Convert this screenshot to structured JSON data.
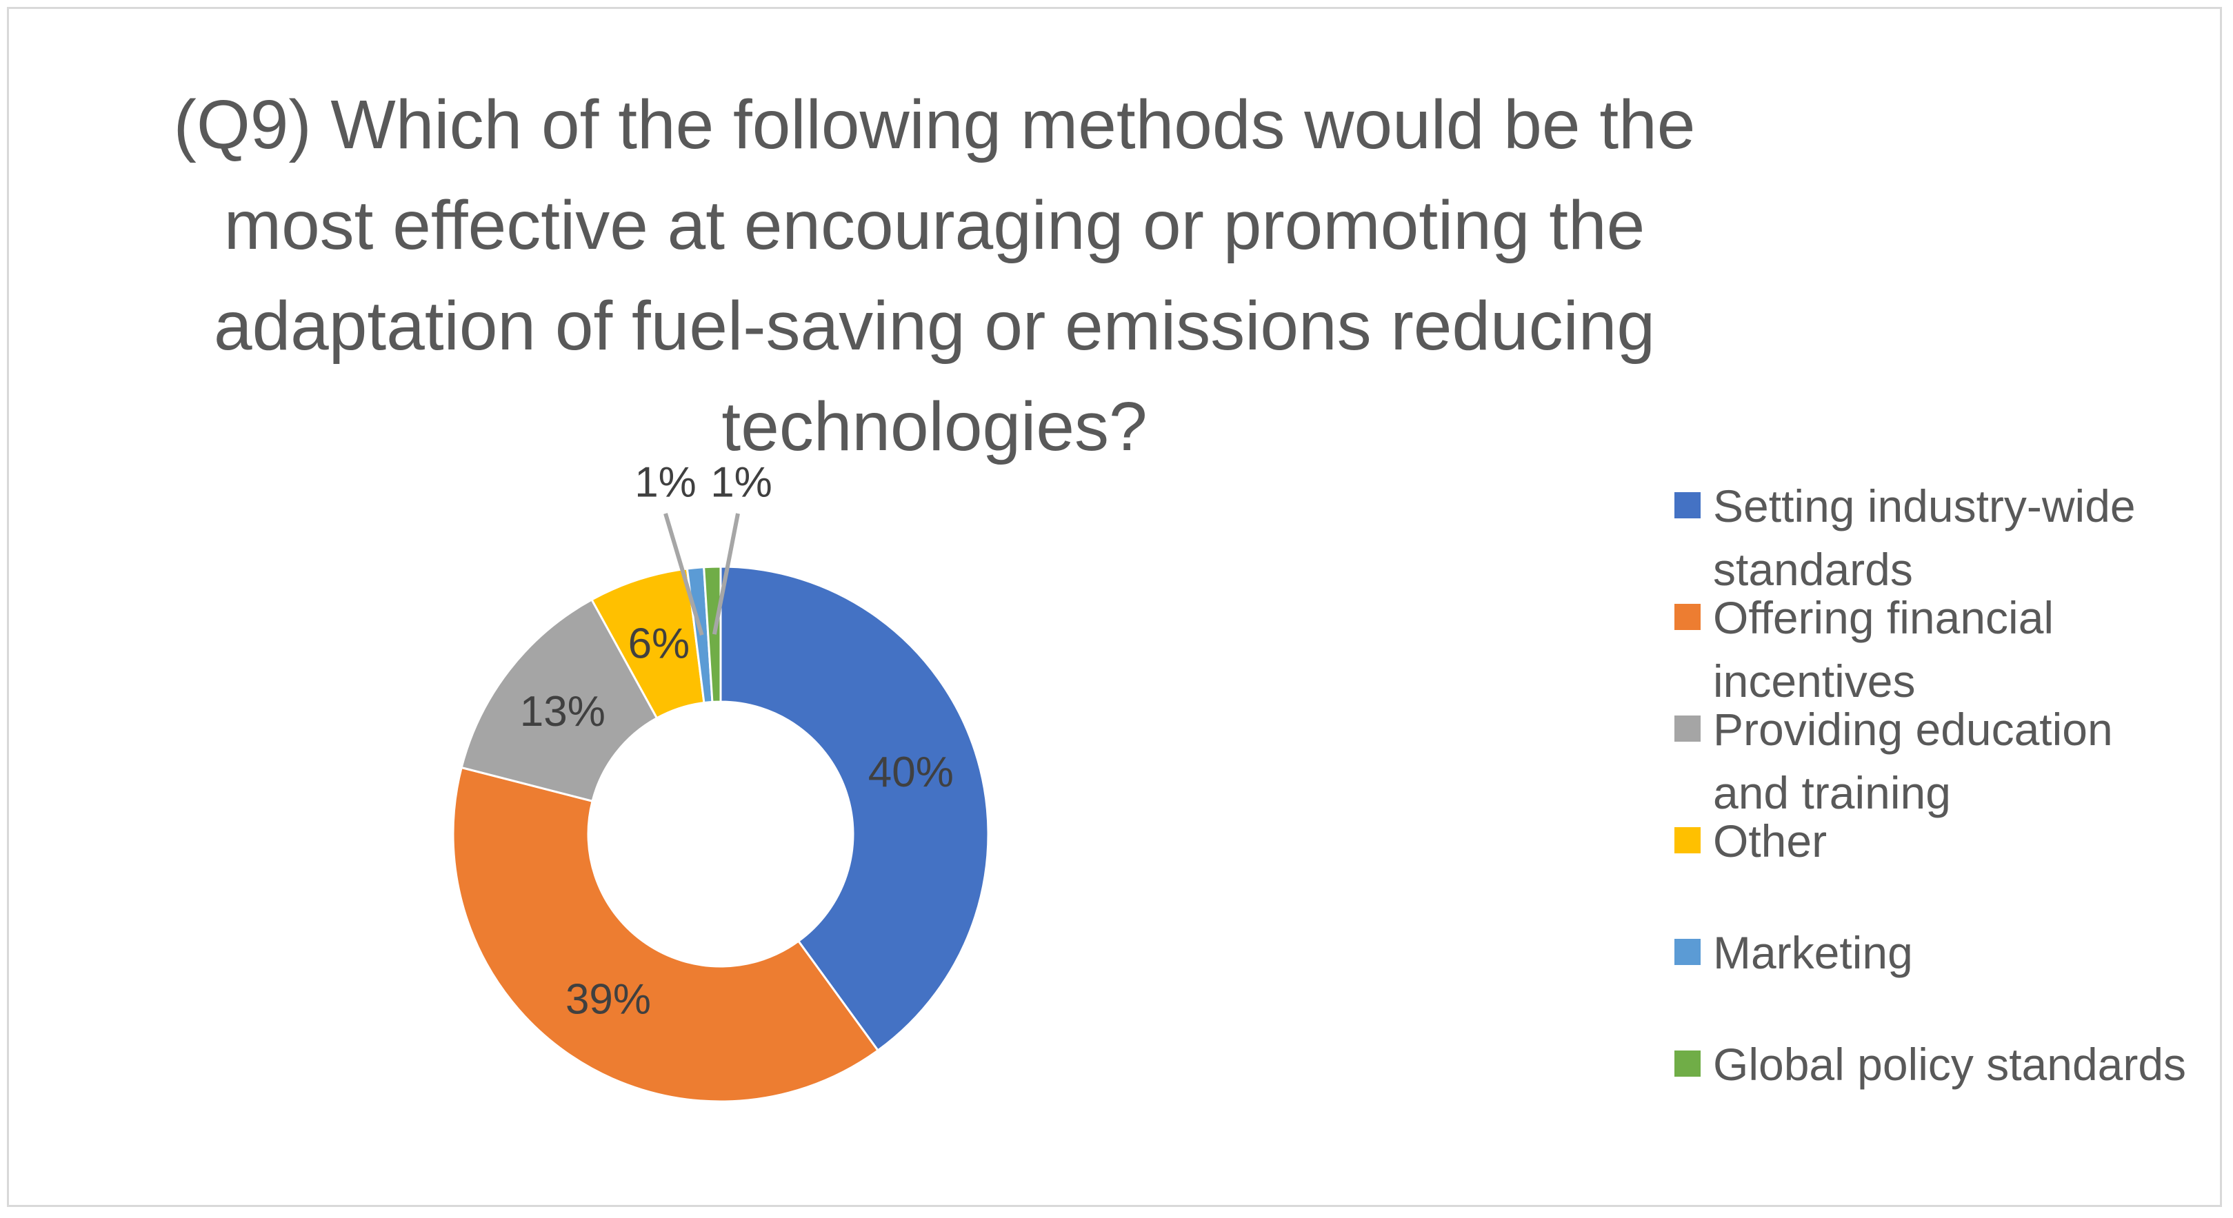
{
  "chart_data": {
    "type": "donut",
    "title": "(Q9) Which of the following methods would be the most effective at encouraging or promoting the adaptation of fuel-saving or emissions reducing technologies?",
    "categories": [
      "Setting industry-wide standards",
      "Offering financial incentives",
      "Providing education and training",
      "Other",
      "Marketing",
      "Global policy standards"
    ],
    "values": [
      40,
      39,
      13,
      6,
      1,
      1
    ],
    "data_labels": [
      "40%",
      "39%",
      "13%",
      "6%",
      "1%",
      "1%"
    ],
    "colors": [
      "#4472c4",
      "#ed7d31",
      "#a5a5a5",
      "#ffc000",
      "#5b9bd5",
      "#70ad47"
    ],
    "legend_position": "right",
    "label_color": "#404040",
    "leader_line_color": "#a6a6a6"
  }
}
